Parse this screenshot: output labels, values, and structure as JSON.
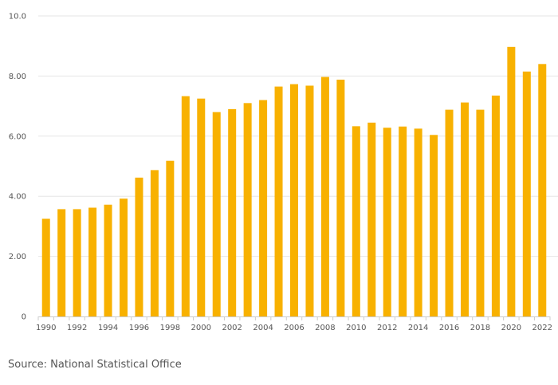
{
  "chart_data": {
    "type": "bar",
    "title": "",
    "xlabel": "",
    "ylabel": "",
    "categories": [
      "1990",
      "1991",
      "1992",
      "1993",
      "1994",
      "1995",
      "1996",
      "1997",
      "1998",
      "1999",
      "2000",
      "2001",
      "2002",
      "2003",
      "2004",
      "2005",
      "2006",
      "2007",
      "2008",
      "2009",
      "2010",
      "2011",
      "2012",
      "2013",
      "2014",
      "2015",
      "2016",
      "2017",
      "2018",
      "2019",
      "2020",
      "2021",
      "2022"
    ],
    "values": [
      3.25,
      3.57,
      3.57,
      3.62,
      3.72,
      3.92,
      4.62,
      4.87,
      5.18,
      7.33,
      7.25,
      6.8,
      6.9,
      7.1,
      7.2,
      7.65,
      7.73,
      7.68,
      7.97,
      7.88,
      6.33,
      6.45,
      6.28,
      6.32,
      6.25,
      6.04,
      6.88,
      7.12,
      6.88,
      7.35,
      8.97,
      8.15,
      8.4
    ],
    "x_tick_labels": [
      "1990",
      "1992",
      "1994",
      "1996",
      "1998",
      "2000",
      "2002",
      "2004",
      "2006",
      "2008",
      "2010",
      "2012",
      "2014",
      "2016",
      "2018",
      "2020",
      "2022"
    ],
    "y_ticks": [
      0,
      2,
      4,
      6,
      8,
      10
    ],
    "y_tick_labels": [
      "0",
      "2.00",
      "4.00",
      "6.00",
      "8.00",
      "10.0"
    ],
    "ylim": [
      0,
      10
    ],
    "grid": true,
    "bar_color": "#f8b100",
    "grid_color": "#e6e6e6",
    "axis_color": "#cccccc"
  },
  "source": "Source: National Statistical Office"
}
